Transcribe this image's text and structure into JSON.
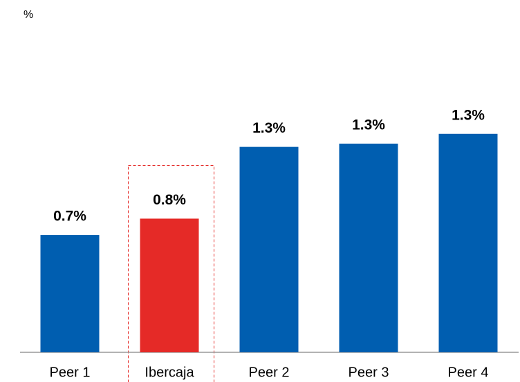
{
  "chart_data": {
    "type": "bar",
    "unit": "%",
    "categories": [
      "Peer 1",
      "Ibercaja",
      "Peer 2",
      "Peer 3",
      "Peer 4"
    ],
    "values": [
      0.72,
      0.82,
      1.26,
      1.28,
      1.34
    ],
    "value_labels": [
      "0.7%",
      "0.8%",
      "1.3%",
      "1.3%",
      "1.3%"
    ],
    "colors": [
      "#005eb0",
      "#e52a27",
      "#005eb0",
      "#005eb0",
      "#005eb0"
    ],
    "ylim": [
      0,
      2
    ]
  }
}
